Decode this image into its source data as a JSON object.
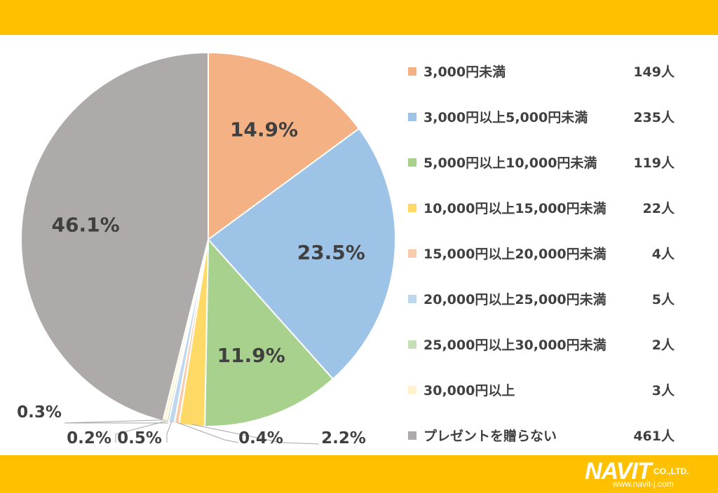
{
  "chart_data": {
    "type": "pie",
    "start_angle_deg": 0,
    "direction": "clockwise",
    "slices": [
      {
        "label": "3,000円未満",
        "count": "149人",
        "percent": 14.9,
        "percent_label": "14.9%",
        "color": "#f4b183"
      },
      {
        "label": "3,000円以上5,000円未満",
        "count": "235人",
        "percent": 23.5,
        "percent_label": "23.5%",
        "color": "#9dc3e6"
      },
      {
        "label": "5,000円以上10,000円未満",
        "count": "119人",
        "percent": 11.9,
        "percent_label": "11.9%",
        "color": "#a9d18e"
      },
      {
        "label": "10,000円以上15,000円未満",
        "count": "22人",
        "percent": 2.2,
        "percent_label": "2.2%",
        "color": "#ffd966"
      },
      {
        "label": "15,000円以上20,000円未満",
        "count": "4人",
        "percent": 0.4,
        "percent_label": "0.4%",
        "color": "#f8cbad"
      },
      {
        "label": "20,000円以上25,000円未満",
        "count": "5人",
        "percent": 0.5,
        "percent_label": "0.5%",
        "color": "#bdd7ee"
      },
      {
        "label": "25,000円以上30,000円未満",
        "count": "2人",
        "percent": 0.2,
        "percent_label": "0.2%",
        "color": "#c5e0b4"
      },
      {
        "label": "30,000円以上",
        "count": "3人",
        "percent": 0.3,
        "percent_label": "0.3%",
        "color": "#fff2cc"
      },
      {
        "label": "プレゼントを贈らない",
        "count": "461人",
        "percent": 46.1,
        "percent_label": "46.1%",
        "color": "#aeaaaa"
      }
    ]
  },
  "branding": {
    "logo_text": "NAVIT",
    "company_suffix": "CO.,LTD.",
    "url": "www.navit-j.com"
  }
}
